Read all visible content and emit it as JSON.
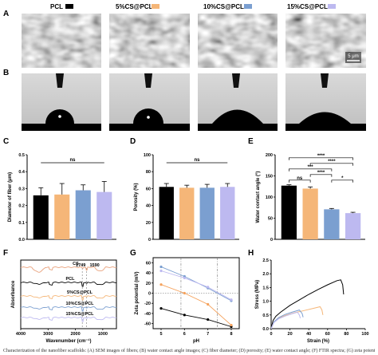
{
  "legend": {
    "items": [
      {
        "label": "PCL",
        "color": "#000000"
      },
      {
        "label": "5%CS@PCL",
        "color": "#F5B678"
      },
      {
        "label": "10%CS@PCL",
        "color": "#7B9FD0"
      },
      {
        "label": "15%CS@PCL",
        "color": "#BDB9F0"
      }
    ]
  },
  "panels": {
    "A": {
      "label": "A",
      "scale_bar": "5 μm"
    },
    "B": {
      "label": "B"
    },
    "C": {
      "label": "C"
    },
    "D": {
      "label": "D"
    },
    "E": {
      "label": "E"
    },
    "F": {
      "label": "F"
    },
    "G": {
      "label": "G"
    },
    "H": {
      "label": "H"
    }
  },
  "caption": "Characterization of the nanofiber scaffolds: (A) SEM images of fibers; (B) water contact angle images; (C) fiber diameter; (D) porosity; (E) water contact angle; (F) FTIR spectra; (G) zeta potential; (H) stress-strain curves",
  "chart_data": [
    {
      "id": "C",
      "type": "bar",
      "categories": [
        "PCL",
        "5%CS@PCL",
        "10%CS@PCL",
        "15%CS@PCL"
      ],
      "values": [
        0.26,
        0.265,
        0.29,
        0.28
      ],
      "errors": [
        0.045,
        0.065,
        0.032,
        0.062
      ],
      "colors": [
        "#000000",
        "#F5B678",
        "#7B9FD0",
        "#BDB9F0"
      ],
      "ylabel": "Diameter of fiber (μm)",
      "ylim": [
        0,
        0.5
      ],
      "yticks": [
        "0.0",
        "0.1",
        "0.2",
        "0.3",
        "0.4",
        "0.5"
      ],
      "significance": [
        {
          "text": "ns",
          "from": 0,
          "to": 3
        }
      ]
    },
    {
      "id": "D",
      "type": "bar",
      "categories": [
        "PCL",
        "5%CS@PCL",
        "10%CS@PCL",
        "15%CS@PCL"
      ],
      "values": [
        62,
        61,
        61,
        62
      ],
      "errors": [
        4,
        3,
        4,
        4
      ],
      "colors": [
        "#000000",
        "#F5B678",
        "#7B9FD0",
        "#BDB9F0"
      ],
      "ylabel": "Porosity (%)",
      "ylim": [
        0,
        100
      ],
      "yticks": [
        "0",
        "20",
        "40",
        "60",
        "80",
        "100"
      ],
      "significance": [
        {
          "text": "ns",
          "from": 0,
          "to": 3
        }
      ]
    },
    {
      "id": "E",
      "type": "bar",
      "categories": [
        "PCL",
        "5%CS@PCL",
        "10%CS@PCL",
        "15%CS@PCL"
      ],
      "values": [
        127,
        120,
        71,
        62
      ],
      "errors": [
        2,
        4,
        2,
        2
      ],
      "colors": [
        "#000000",
        "#F5B678",
        "#7B9FD0",
        "#BDB9F0"
      ],
      "ylabel": "Water contact angle (°)",
      "ylim": [
        0,
        200
      ],
      "yticks": [
        "0",
        "50",
        "100",
        "150",
        "200"
      ],
      "significance": [
        {
          "text": "ns",
          "from": 0,
          "to": 1,
          "level": 1
        },
        {
          "text": "*",
          "from": 2,
          "to": 3,
          "level": 1
        },
        {
          "text": "****",
          "from": 1,
          "to": 2,
          "level": 2
        },
        {
          "text": "***",
          "from": 0,
          "to": 2,
          "level": 3
        },
        {
          "text": "****",
          "from": 1,
          "to": 3,
          "level": 4
        },
        {
          "text": "****",
          "from": 0,
          "to": 3,
          "level": 5
        }
      ]
    },
    {
      "id": "F",
      "type": "line",
      "xlabel": "Wavenumber (cm⁻¹)",
      "ylabel": "Absorbance",
      "xlim": [
        4000,
        500
      ],
      "xticks": [
        "4000",
        "3000",
        "2000",
        "1000"
      ],
      "peaks": [
        "1749",
        "1590"
      ],
      "series": [
        {
          "name": "CS",
          "color": "#E8A07A"
        },
        {
          "name": "PCL",
          "color": "#000000"
        },
        {
          "name": "5%CS@PCL",
          "color": "#F5B678"
        },
        {
          "name": "10%CS@PCL",
          "color": "#7B9FD0"
        },
        {
          "name": "15%CS@PCL",
          "color": "#BDB9F0"
        }
      ]
    },
    {
      "id": "G",
      "type": "line",
      "xlabel": "pH",
      "ylabel": "Zeta potential (mV)",
      "x": [
        5,
        6,
        7,
        8
      ],
      "ylim": [
        -70,
        70
      ],
      "xticks": [
        "5",
        "6",
        "7",
        "8"
      ],
      "yticks": [
        "-60",
        "-40",
        "-20",
        "0",
        "20",
        "40",
        "60"
      ],
      "series": [
        {
          "name": "PCL",
          "color": "#000000",
          "values": [
            -30,
            -43,
            -52,
            -66
          ]
        },
        {
          "name": "5%CS@PCL",
          "color": "#F5A25C",
          "values": [
            17,
            0,
            -22,
            -63
          ]
        },
        {
          "name": "10%CS@PCL",
          "color": "#7B9FD0",
          "values": [
            52,
            33,
            10,
            -15
          ]
        },
        {
          "name": "15%CS@PCL",
          "color": "#BDB9F0",
          "values": [
            44,
            30,
            12,
            -13
          ]
        }
      ]
    },
    {
      "id": "H",
      "type": "line",
      "xlabel": "Strain (%)",
      "ylabel": "Stress (MPa)",
      "xlim": [
        0,
        100
      ],
      "ylim": [
        0,
        2.5
      ],
      "xticks": [
        "0",
        "20",
        "40",
        "60",
        "80",
        "100"
      ],
      "yticks": [
        "0.0",
        "0.5",
        "1.0",
        "1.5",
        "2.0",
        "2.5"
      ],
      "series": [
        {
          "name": "PCL",
          "color": "#000000",
          "x": [
            0,
            2,
            5,
            10,
            20,
            30,
            40,
            50,
            60,
            70,
            74,
            76,
            77
          ],
          "y": [
            0,
            0.3,
            0.45,
            0.6,
            0.85,
            1.05,
            1.25,
            1.43,
            1.6,
            1.75,
            1.78,
            1.6,
            1.25
          ]
        },
        {
          "name": "5%CS@PCL",
          "color": "#F5B678",
          "x": [
            0,
            3,
            8,
            15,
            25,
            35,
            45,
            52,
            54,
            55
          ],
          "y": [
            0,
            0.25,
            0.38,
            0.48,
            0.58,
            0.66,
            0.74,
            0.8,
            0.68,
            0.5
          ]
        },
        {
          "name": "10%CS@PCL",
          "color": "#7B9FD0",
          "x": [
            0,
            3,
            8,
            15,
            22,
            30,
            33,
            34
          ],
          "y": [
            0,
            0.25,
            0.4,
            0.52,
            0.6,
            0.68,
            0.55,
            0.42
          ]
        },
        {
          "name": "15%CS@PCL",
          "color": "#BDB9F0",
          "x": [
            0,
            3,
            8,
            15,
            22,
            28,
            30,
            31
          ],
          "y": [
            0,
            0.22,
            0.36,
            0.46,
            0.54,
            0.6,
            0.5,
            0.38
          ]
        }
      ]
    }
  ]
}
